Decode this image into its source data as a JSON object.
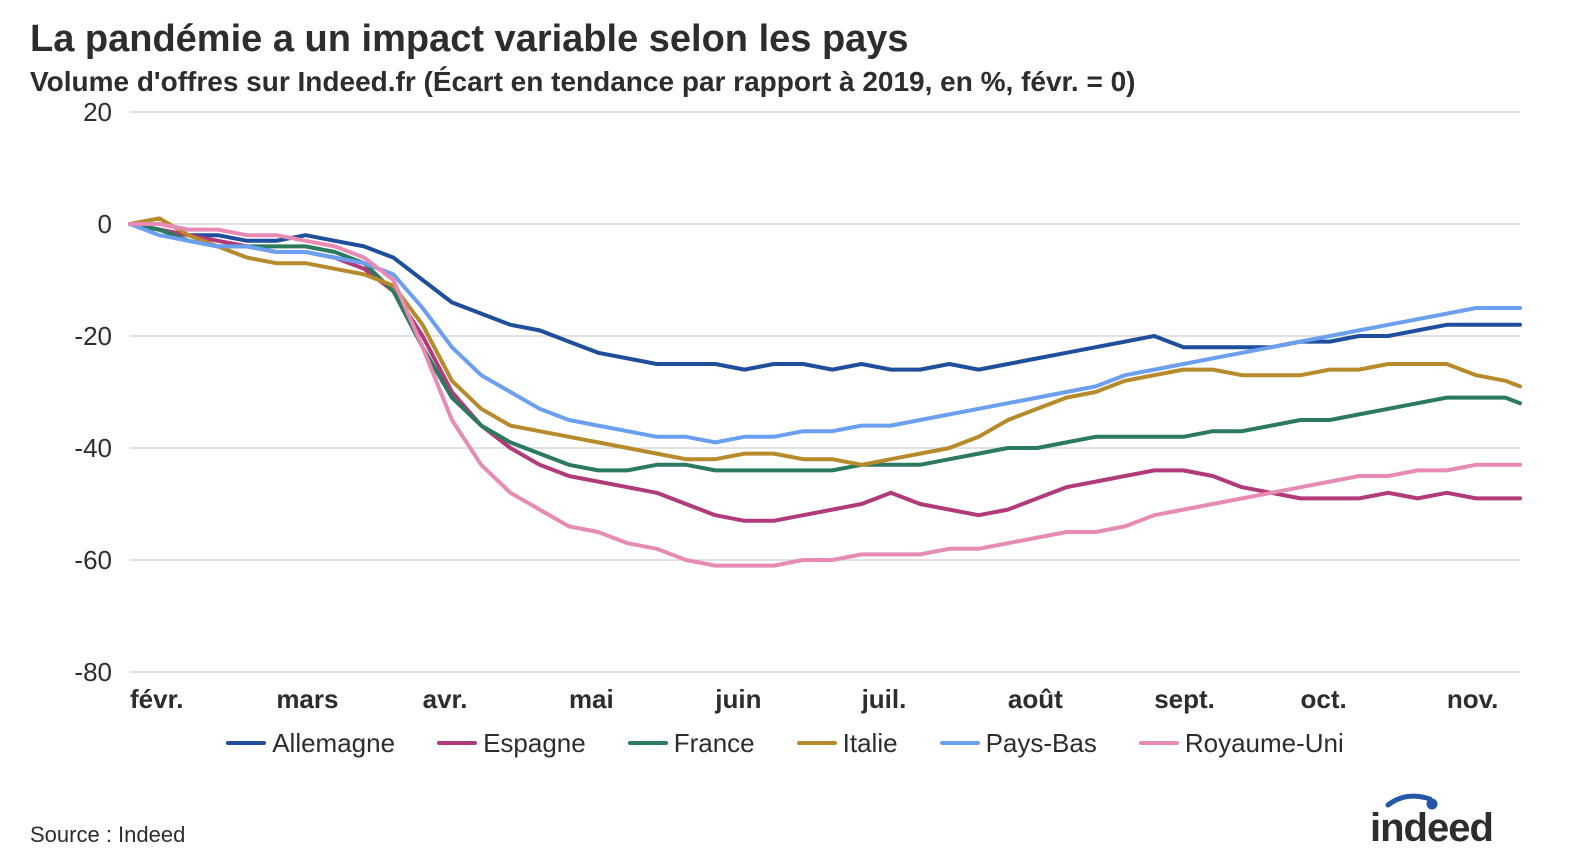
{
  "title": "La pandémie a un impact variable selon les pays",
  "subtitle": "Volume d'offres sur Indeed.fr (Écart en tendance par rapport à 2019, en %, févr. = 0)",
  "source": "Source : Indeed",
  "brand": "indeed",
  "chart": {
    "type": "line",
    "background_color": "#ffffff",
    "grid_color": "#d9d9d9",
    "axis_fontsize": 26,
    "line_width": 4,
    "xlim": [
      0,
      9.5
    ],
    "ylim": [
      -80,
      20
    ],
    "ytick_step": 20,
    "yticks": [
      20,
      0,
      -20,
      -40,
      -60,
      -80
    ],
    "xticks": [
      {
        "pos": 0,
        "label": "févr."
      },
      {
        "pos": 1,
        "label": "mars"
      },
      {
        "pos": 2,
        "label": "avr."
      },
      {
        "pos": 3,
        "label": "mai"
      },
      {
        "pos": 4,
        "label": "juin"
      },
      {
        "pos": 5,
        "label": "juil."
      },
      {
        "pos": 6,
        "label": "août"
      },
      {
        "pos": 7,
        "label": "sept."
      },
      {
        "pos": 8,
        "label": "oct."
      },
      {
        "pos": 9,
        "label": "nov."
      }
    ],
    "series": [
      {
        "name": "Allemagne",
        "color": "#1f4e9c",
        "points": [
          [
            0,
            0
          ],
          [
            0.2,
            -1
          ],
          [
            0.4,
            -2
          ],
          [
            0.6,
            -2
          ],
          [
            0.8,
            -3
          ],
          [
            1,
            -3
          ],
          [
            1.2,
            -2
          ],
          [
            1.4,
            -3
          ],
          [
            1.6,
            -4
          ],
          [
            1.8,
            -6
          ],
          [
            2,
            -10
          ],
          [
            2.2,
            -14
          ],
          [
            2.4,
            -16
          ],
          [
            2.6,
            -18
          ],
          [
            2.8,
            -19
          ],
          [
            3,
            -21
          ],
          [
            3.2,
            -23
          ],
          [
            3.4,
            -24
          ],
          [
            3.6,
            -25
          ],
          [
            3.8,
            -25
          ],
          [
            4,
            -25
          ],
          [
            4.2,
            -26
          ],
          [
            4.4,
            -25
          ],
          [
            4.6,
            -25
          ],
          [
            4.8,
            -26
          ],
          [
            5,
            -25
          ],
          [
            5.2,
            -26
          ],
          [
            5.4,
            -26
          ],
          [
            5.6,
            -25
          ],
          [
            5.8,
            -26
          ],
          [
            6,
            -25
          ],
          [
            6.2,
            -24
          ],
          [
            6.4,
            -23
          ],
          [
            6.6,
            -22
          ],
          [
            6.8,
            -21
          ],
          [
            7,
            -20
          ],
          [
            7.2,
            -22
          ],
          [
            7.4,
            -22
          ],
          [
            7.6,
            -22
          ],
          [
            7.8,
            -22
          ],
          [
            8,
            -21
          ],
          [
            8.2,
            -21
          ],
          [
            8.4,
            -20
          ],
          [
            8.6,
            -20
          ],
          [
            8.8,
            -19
          ],
          [
            9,
            -18
          ],
          [
            9.2,
            -18
          ],
          [
            9.4,
            -18
          ],
          [
            9.5,
            -18
          ]
        ]
      },
      {
        "name": "Espagne",
        "color": "#b13a7a",
        "points": [
          [
            0,
            0
          ],
          [
            0.2,
            -1
          ],
          [
            0.4,
            -2
          ],
          [
            0.6,
            -3
          ],
          [
            0.8,
            -4
          ],
          [
            1,
            -5
          ],
          [
            1.2,
            -5
          ],
          [
            1.4,
            -6
          ],
          [
            1.6,
            -8
          ],
          [
            1.8,
            -12
          ],
          [
            2,
            -20
          ],
          [
            2.2,
            -30
          ],
          [
            2.4,
            -36
          ],
          [
            2.6,
            -40
          ],
          [
            2.8,
            -43
          ],
          [
            3,
            -45
          ],
          [
            3.2,
            -46
          ],
          [
            3.4,
            -47
          ],
          [
            3.6,
            -48
          ],
          [
            3.8,
            -50
          ],
          [
            4,
            -52
          ],
          [
            4.2,
            -53
          ],
          [
            4.4,
            -53
          ],
          [
            4.6,
            -52
          ],
          [
            4.8,
            -51
          ],
          [
            5,
            -50
          ],
          [
            5.2,
            -48
          ],
          [
            5.4,
            -50
          ],
          [
            5.6,
            -51
          ],
          [
            5.8,
            -52
          ],
          [
            6,
            -51
          ],
          [
            6.2,
            -49
          ],
          [
            6.4,
            -47
          ],
          [
            6.6,
            -46
          ],
          [
            6.8,
            -45
          ],
          [
            7,
            -44
          ],
          [
            7.2,
            -44
          ],
          [
            7.4,
            -45
          ],
          [
            7.6,
            -47
          ],
          [
            7.8,
            -48
          ],
          [
            8,
            -49
          ],
          [
            8.2,
            -49
          ],
          [
            8.4,
            -49
          ],
          [
            8.6,
            -48
          ],
          [
            8.8,
            -49
          ],
          [
            9,
            -48
          ],
          [
            9.2,
            -49
          ],
          [
            9.4,
            -49
          ],
          [
            9.5,
            -49
          ]
        ]
      },
      {
        "name": "France",
        "color": "#2b7a5d",
        "points": [
          [
            0,
            0
          ],
          [
            0.2,
            -1
          ],
          [
            0.4,
            -3
          ],
          [
            0.6,
            -4
          ],
          [
            0.8,
            -4
          ],
          [
            1,
            -4
          ],
          [
            1.2,
            -4
          ],
          [
            1.4,
            -5
          ],
          [
            1.6,
            -7
          ],
          [
            1.8,
            -12
          ],
          [
            2,
            -22
          ],
          [
            2.2,
            -31
          ],
          [
            2.4,
            -36
          ],
          [
            2.6,
            -39
          ],
          [
            2.8,
            -41
          ],
          [
            3,
            -43
          ],
          [
            3.2,
            -44
          ],
          [
            3.4,
            -44
          ],
          [
            3.6,
            -43
          ],
          [
            3.8,
            -43
          ],
          [
            4,
            -44
          ],
          [
            4.2,
            -44
          ],
          [
            4.4,
            -44
          ],
          [
            4.6,
            -44
          ],
          [
            4.8,
            -44
          ],
          [
            5,
            -43
          ],
          [
            5.2,
            -43
          ],
          [
            5.4,
            -43
          ],
          [
            5.6,
            -42
          ],
          [
            5.8,
            -41
          ],
          [
            6,
            -40
          ],
          [
            6.2,
            -40
          ],
          [
            6.4,
            -39
          ],
          [
            6.6,
            -38
          ],
          [
            6.8,
            -38
          ],
          [
            7,
            -38
          ],
          [
            7.2,
            -38
          ],
          [
            7.4,
            -37
          ],
          [
            7.6,
            -37
          ],
          [
            7.8,
            -36
          ],
          [
            8,
            -35
          ],
          [
            8.2,
            -35
          ],
          [
            8.4,
            -34
          ],
          [
            8.6,
            -33
          ],
          [
            8.8,
            -32
          ],
          [
            9,
            -31
          ],
          [
            9.2,
            -31
          ],
          [
            9.4,
            -31
          ],
          [
            9.5,
            -32
          ]
        ]
      },
      {
        "name": "Italie",
        "color": "#b78a2c",
        "points": [
          [
            0,
            0
          ],
          [
            0.2,
            1
          ],
          [
            0.4,
            -2
          ],
          [
            0.6,
            -4
          ],
          [
            0.8,
            -6
          ],
          [
            1,
            -7
          ],
          [
            1.2,
            -7
          ],
          [
            1.4,
            -8
          ],
          [
            1.6,
            -9
          ],
          [
            1.8,
            -11
          ],
          [
            2,
            -18
          ],
          [
            2.2,
            -28
          ],
          [
            2.4,
            -33
          ],
          [
            2.6,
            -36
          ],
          [
            2.8,
            -37
          ],
          [
            3,
            -38
          ],
          [
            3.2,
            -39
          ],
          [
            3.4,
            -40
          ],
          [
            3.6,
            -41
          ],
          [
            3.8,
            -42
          ],
          [
            4,
            -42
          ],
          [
            4.2,
            -41
          ],
          [
            4.4,
            -41
          ],
          [
            4.6,
            -42
          ],
          [
            4.8,
            -42
          ],
          [
            5,
            -43
          ],
          [
            5.2,
            -42
          ],
          [
            5.4,
            -41
          ],
          [
            5.6,
            -40
          ],
          [
            5.8,
            -38
          ],
          [
            6,
            -35
          ],
          [
            6.2,
            -33
          ],
          [
            6.4,
            -31
          ],
          [
            6.6,
            -30
          ],
          [
            6.8,
            -28
          ],
          [
            7,
            -27
          ],
          [
            7.2,
            -26
          ],
          [
            7.4,
            -26
          ],
          [
            7.6,
            -27
          ],
          [
            7.8,
            -27
          ],
          [
            8,
            -27
          ],
          [
            8.2,
            -26
          ],
          [
            8.4,
            -26
          ],
          [
            8.6,
            -25
          ],
          [
            8.8,
            -25
          ],
          [
            9,
            -25
          ],
          [
            9.2,
            -27
          ],
          [
            9.4,
            -28
          ],
          [
            9.5,
            -29
          ]
        ]
      },
      {
        "name": "Pays-Bas",
        "color": "#6b9ff0",
        "points": [
          [
            0,
            0
          ],
          [
            0.2,
            -2
          ],
          [
            0.4,
            -3
          ],
          [
            0.6,
            -4
          ],
          [
            0.8,
            -4
          ],
          [
            1,
            -5
          ],
          [
            1.2,
            -5
          ],
          [
            1.4,
            -6
          ],
          [
            1.6,
            -7
          ],
          [
            1.8,
            -9
          ],
          [
            2,
            -15
          ],
          [
            2.2,
            -22
          ],
          [
            2.4,
            -27
          ],
          [
            2.6,
            -30
          ],
          [
            2.8,
            -33
          ],
          [
            3,
            -35
          ],
          [
            3.2,
            -36
          ],
          [
            3.4,
            -37
          ],
          [
            3.6,
            -38
          ],
          [
            3.8,
            -38
          ],
          [
            4,
            -39
          ],
          [
            4.2,
            -38
          ],
          [
            4.4,
            -38
          ],
          [
            4.6,
            -37
          ],
          [
            4.8,
            -37
          ],
          [
            5,
            -36
          ],
          [
            5.2,
            -36
          ],
          [
            5.4,
            -35
          ],
          [
            5.6,
            -34
          ],
          [
            5.8,
            -33
          ],
          [
            6,
            -32
          ],
          [
            6.2,
            -31
          ],
          [
            6.4,
            -30
          ],
          [
            6.6,
            -29
          ],
          [
            6.8,
            -27
          ],
          [
            7,
            -26
          ],
          [
            7.2,
            -25
          ],
          [
            7.4,
            -24
          ],
          [
            7.6,
            -23
          ],
          [
            7.8,
            -22
          ],
          [
            8,
            -21
          ],
          [
            8.2,
            -20
          ],
          [
            8.4,
            -19
          ],
          [
            8.6,
            -18
          ],
          [
            8.8,
            -17
          ],
          [
            9,
            -16
          ],
          [
            9.2,
            -15
          ],
          [
            9.4,
            -15
          ],
          [
            9.5,
            -15
          ]
        ]
      },
      {
        "name": "Royaume-Uni",
        "color": "#e78bb5",
        "points": [
          [
            0,
            0
          ],
          [
            0.2,
            0
          ],
          [
            0.4,
            -1
          ],
          [
            0.6,
            -1
          ],
          [
            0.8,
            -2
          ],
          [
            1,
            -2
          ],
          [
            1.2,
            -3
          ],
          [
            1.4,
            -4
          ],
          [
            1.6,
            -6
          ],
          [
            1.8,
            -10
          ],
          [
            2,
            -22
          ],
          [
            2.2,
            -35
          ],
          [
            2.4,
            -43
          ],
          [
            2.6,
            -48
          ],
          [
            2.8,
            -51
          ],
          [
            3,
            -54
          ],
          [
            3.2,
            -55
          ],
          [
            3.4,
            -57
          ],
          [
            3.6,
            -58
          ],
          [
            3.8,
            -60
          ],
          [
            4,
            -61
          ],
          [
            4.2,
            -61
          ],
          [
            4.4,
            -61
          ],
          [
            4.6,
            -60
          ],
          [
            4.8,
            -60
          ],
          [
            5,
            -59
          ],
          [
            5.2,
            -59
          ],
          [
            5.4,
            -59
          ],
          [
            5.6,
            -58
          ],
          [
            5.8,
            -58
          ],
          [
            6,
            -57
          ],
          [
            6.2,
            -56
          ],
          [
            6.4,
            -55
          ],
          [
            6.6,
            -55
          ],
          [
            6.8,
            -54
          ],
          [
            7,
            -52
          ],
          [
            7.2,
            -51
          ],
          [
            7.4,
            -50
          ],
          [
            7.6,
            -49
          ],
          [
            7.8,
            -48
          ],
          [
            8,
            -47
          ],
          [
            8.2,
            -46
          ],
          [
            8.4,
            -45
          ],
          [
            8.6,
            -45
          ],
          [
            8.8,
            -44
          ],
          [
            9,
            -44
          ],
          [
            9.2,
            -43
          ],
          [
            9.4,
            -43
          ],
          [
            9.5,
            -43
          ]
        ]
      }
    ]
  },
  "brand_color": "#2557a7"
}
